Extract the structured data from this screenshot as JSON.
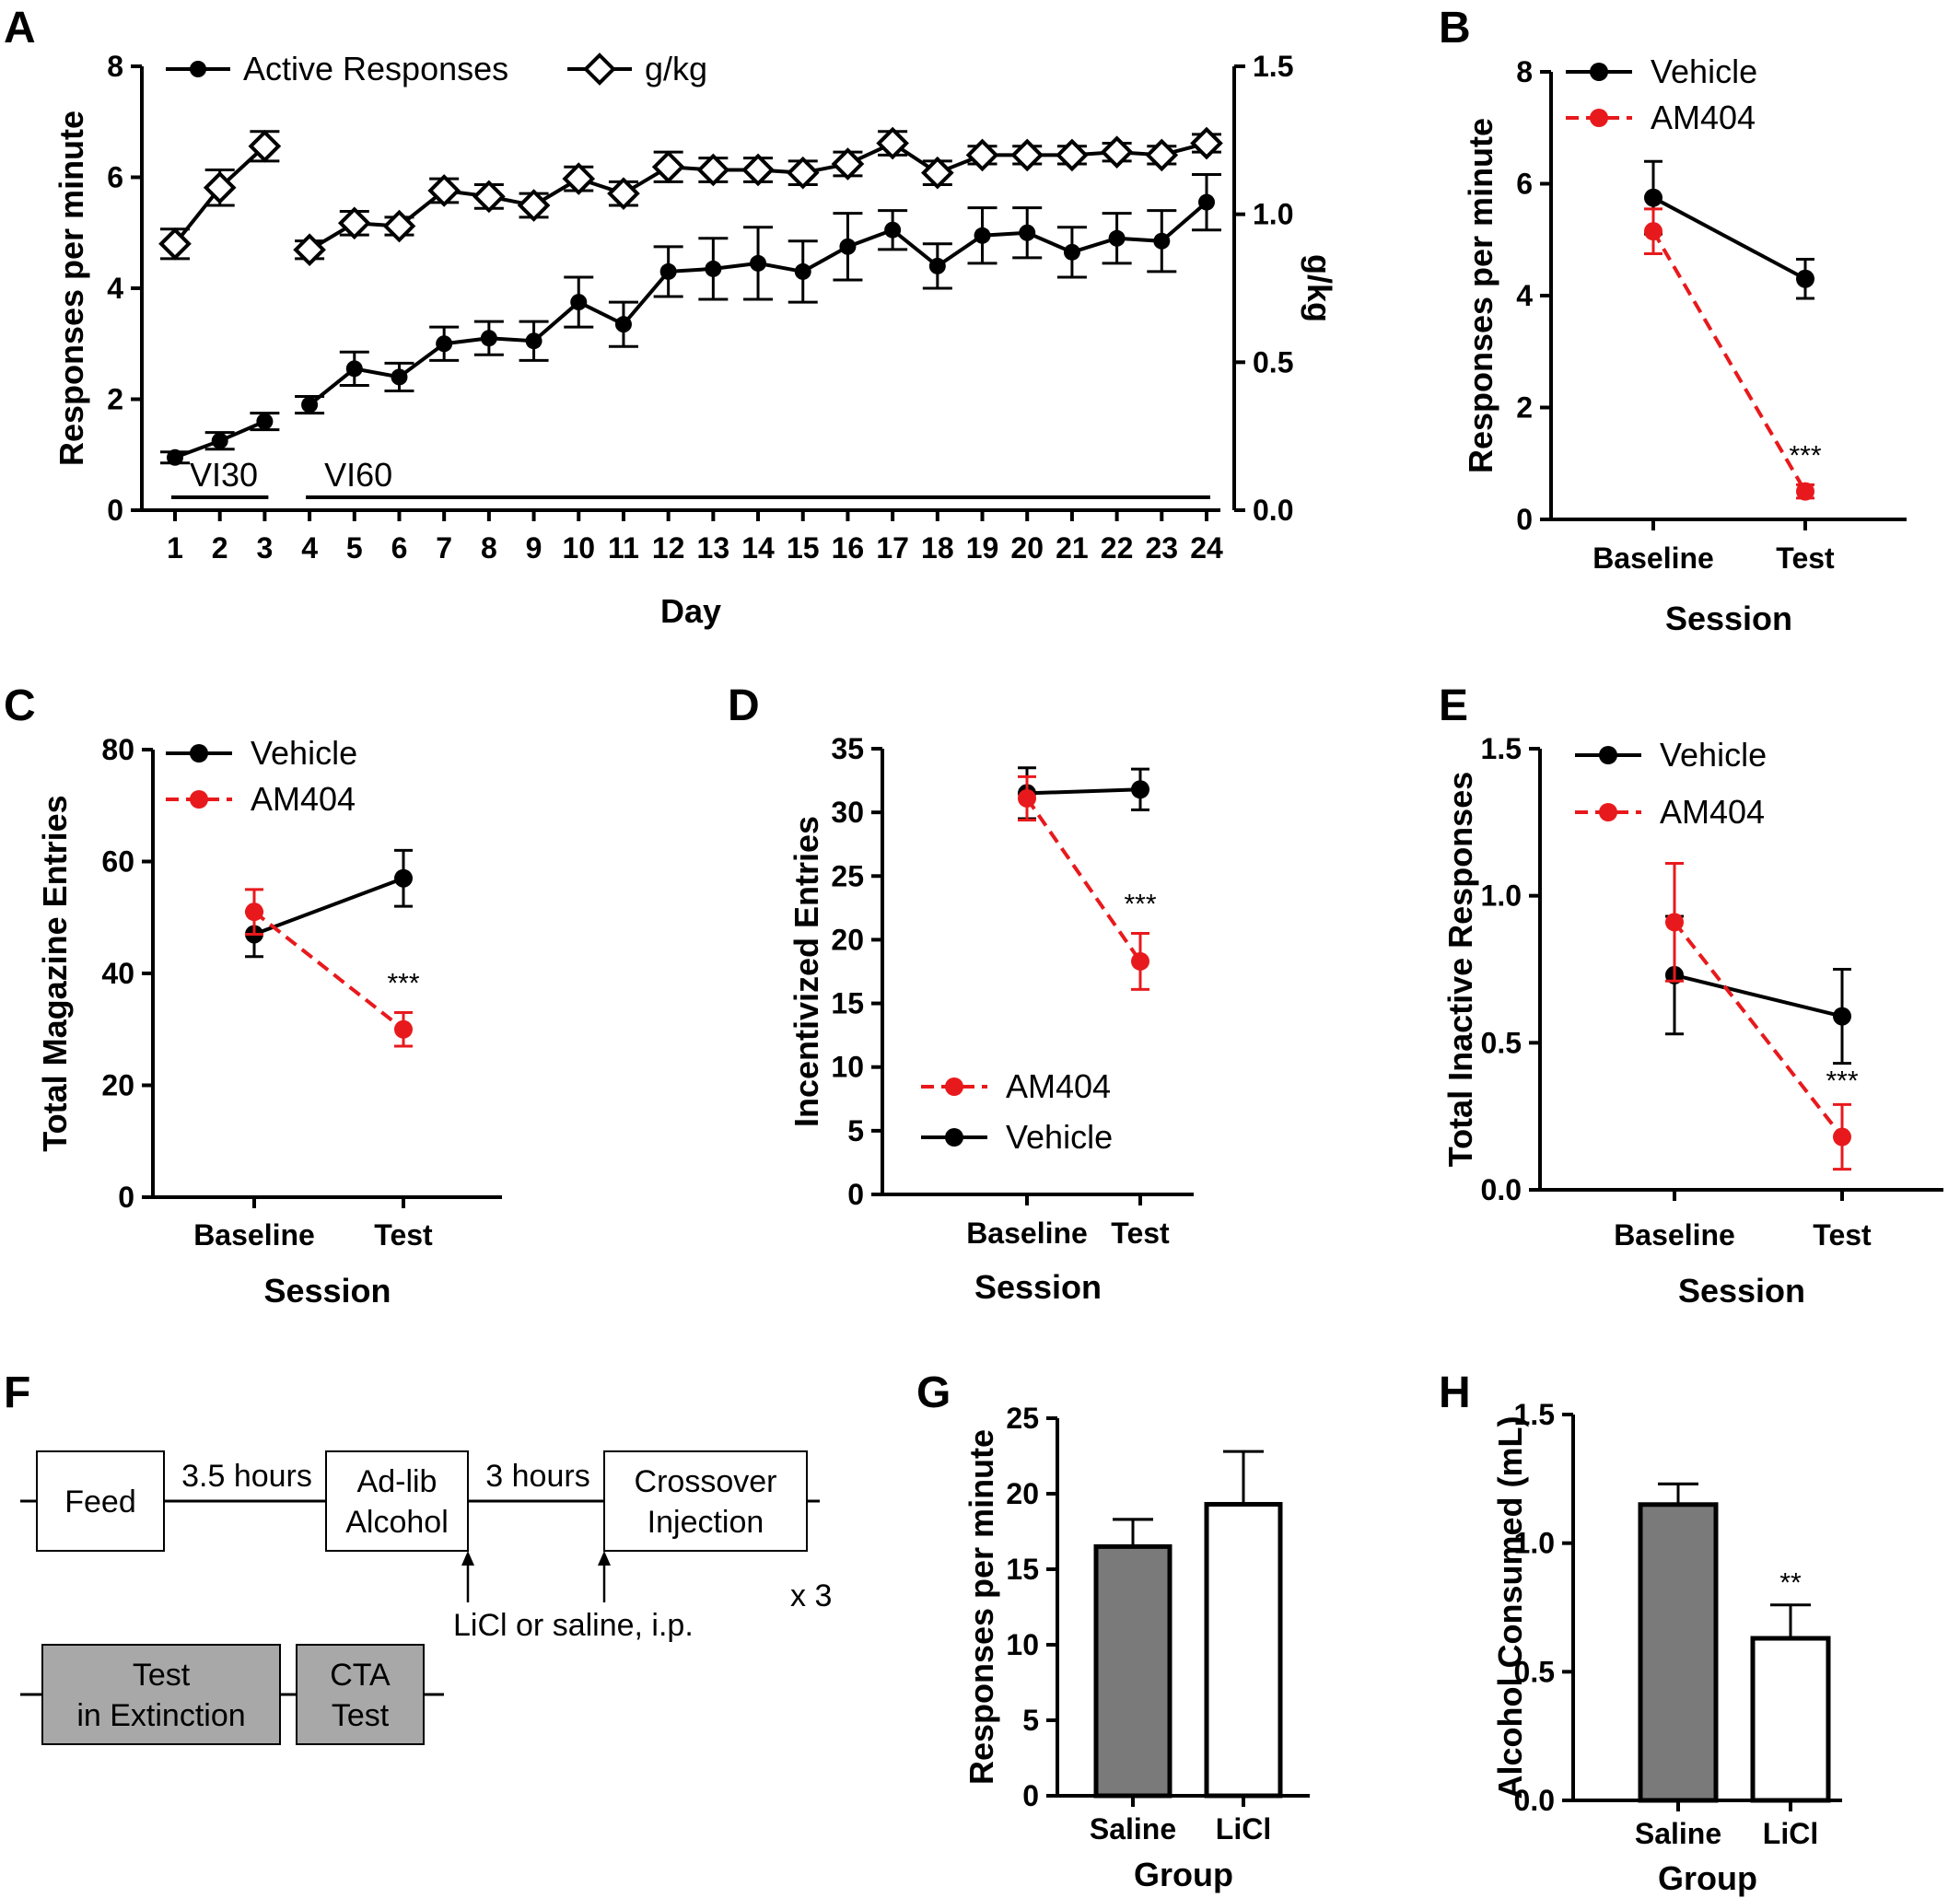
{
  "colors": {
    "vehicle": "#000000",
    "am404": "#e8191c",
    "saline_bar": "#7a7a7a",
    "licl_bar": "#ffffff",
    "timeline_box_gray": "#a8a8a8"
  },
  "chart_data": [
    {
      "panel": "A",
      "type": "line",
      "xlabel": "Day",
      "ylabel": "Responses per minute",
      "y2label": "g/kg",
      "x": [
        1,
        2,
        3,
        4,
        5,
        6,
        7,
        8,
        9,
        10,
        11,
        12,
        13,
        14,
        15,
        16,
        17,
        18,
        19,
        20,
        21,
        22,
        23,
        24
      ],
      "ylim": [
        0,
        8
      ],
      "y2lim": [
        0,
        1.5
      ],
      "yticks": [
        "0",
        "2",
        "4",
        "6",
        "8"
      ],
      "y2ticks": [
        "0.0",
        "0.5",
        "1.0",
        "1.5"
      ],
      "series": [
        {
          "name": "Active Responses",
          "axis": "left",
          "marker": "filled-circle",
          "values": [
            0.95,
            1.25,
            1.6,
            1.9,
            2.55,
            2.4,
            3.0,
            3.1,
            3.05,
            3.75,
            3.35,
            4.3,
            4.35,
            4.45,
            4.3,
            4.75,
            5.05,
            4.4,
            4.95,
            5.0,
            4.65,
            4.9,
            4.85,
            5.55
          ],
          "errors": [
            0.1,
            0.15,
            0.15,
            0.15,
            0.3,
            0.25,
            0.3,
            0.3,
            0.35,
            0.45,
            0.4,
            0.45,
            0.55,
            0.65,
            0.55,
            0.6,
            0.35,
            0.4,
            0.5,
            0.45,
            0.45,
            0.45,
            0.55,
            0.5
          ]
        },
        {
          "name": "g/kg",
          "axis": "right",
          "marker": "open-diamond",
          "values": [
            0.9,
            1.09,
            1.23,
            0.88,
            0.97,
            0.96,
            1.08,
            1.06,
            1.03,
            1.12,
            1.07,
            1.16,
            1.15,
            1.15,
            1.14,
            1.17,
            1.24,
            1.14,
            1.2,
            1.2,
            1.2,
            1.21,
            1.2,
            1.24
          ],
          "errors": [
            0.05,
            0.06,
            0.05,
            0.03,
            0.04,
            0.03,
            0.04,
            0.04,
            0.04,
            0.04,
            0.04,
            0.05,
            0.04,
            0.04,
            0.04,
            0.04,
            0.04,
            0.04,
            0.03,
            0.03,
            0.03,
            0.03,
            0.03,
            0.03
          ]
        }
      ],
      "annotations": [
        {
          "text": "VI30",
          "from": 1,
          "to": 3
        },
        {
          "text": "VI60",
          "from": 4,
          "to": 24
        }
      ],
      "gap_between": [
        3,
        4
      ]
    },
    {
      "panel": "B",
      "type": "line",
      "categories": [
        "Baseline",
        "Test"
      ],
      "xlabel": "Session",
      "ylabel": "Responses per minute",
      "ylim": [
        0,
        8
      ],
      "yticks": [
        "0",
        "2",
        "4",
        "6",
        "8"
      ],
      "series": [
        {
          "name": "Vehicle",
          "values": [
            5.75,
            4.3
          ],
          "errors": [
            0.65,
            0.35
          ]
        },
        {
          "name": "AM404",
          "values": [
            5.15,
            0.5
          ],
          "errors": [
            0.4,
            0.12
          ]
        }
      ],
      "significance": "***",
      "significance_at": "Test"
    },
    {
      "panel": "C",
      "type": "line",
      "categories": [
        "Baseline",
        "Test"
      ],
      "xlabel": "Session",
      "ylabel": "Total Magazine Entries",
      "ylim": [
        0,
        80
      ],
      "yticks": [
        "0",
        "20",
        "40",
        "60",
        "80"
      ],
      "series": [
        {
          "name": "Vehicle",
          "values": [
            47,
            57
          ],
          "errors": [
            4,
            5
          ]
        },
        {
          "name": "AM404",
          "values": [
            51,
            30
          ],
          "errors": [
            4,
            3
          ]
        }
      ],
      "significance": "***",
      "significance_at": "Test"
    },
    {
      "panel": "D",
      "type": "line",
      "categories": [
        "Baseline",
        "Test"
      ],
      "xlabel": "Session",
      "ylabel": "Incentivized Entries",
      "ylim": [
        0,
        35
      ],
      "yticks": [
        "0",
        "5",
        "10",
        "15",
        "20",
        "25",
        "30",
        "35"
      ],
      "series": [
        {
          "name": "Vehicle",
          "values": [
            31.5,
            31.8
          ],
          "errors": [
            2.0,
            1.6
          ]
        },
        {
          "name": "AM404",
          "values": [
            31.1,
            18.3
          ],
          "errors": [
            1.7,
            2.2
          ]
        }
      ],
      "legend_order": [
        "AM404",
        "Vehicle"
      ],
      "significance": "***",
      "significance_at": "Test"
    },
    {
      "panel": "E",
      "type": "line",
      "categories": [
        "Baseline",
        "Test"
      ],
      "xlabel": "Session",
      "ylabel": "Total Inactive Responses",
      "ylim": [
        0,
        1.5
      ],
      "yticks": [
        "0.0",
        "0.5",
        "1.0",
        "1.5"
      ],
      "series": [
        {
          "name": "Vehicle",
          "values": [
            0.73,
            0.59
          ],
          "errors": [
            0.2,
            0.16
          ]
        },
        {
          "name": "AM404",
          "values": [
            0.91,
            0.18
          ],
          "errors": [
            0.2,
            0.11
          ]
        }
      ],
      "significance": "***",
      "significance_at": "Test"
    },
    {
      "panel": "G",
      "type": "bar",
      "categories": [
        "Saline",
        "LiCl"
      ],
      "xlabel": "Group",
      "ylabel": "Responses per minute",
      "ylim": [
        0,
        25
      ],
      "yticks": [
        "0",
        "5",
        "10",
        "15",
        "20",
        "25"
      ],
      "values": [
        16.5,
        19.3
      ],
      "errors": [
        1.8,
        3.5
      ]
    },
    {
      "panel": "H",
      "type": "bar",
      "categories": [
        "Saline",
        "LiCl"
      ],
      "xlabel": "Group",
      "ylabel": "Alcohol Consumed (mL)",
      "ylim": [
        0,
        1.5
      ],
      "yticks": [
        "0.0",
        "0.5",
        "1.0",
        "1.5"
      ],
      "values": [
        1.15,
        0.63
      ],
      "errors": [
        0.08,
        0.13
      ],
      "significance": "**",
      "significance_at": "LiCl"
    }
  ],
  "panel_labels": [
    "A",
    "B",
    "C",
    "D",
    "E",
    "F",
    "G",
    "H"
  ],
  "timeline": {
    "boxes": [
      "Feed",
      "Ad-lib\nAlcohol",
      "Crossover\nInjection",
      "Test\nin Extinction",
      "CTA\nTest"
    ],
    "intervals": [
      "3.5 hours",
      "3 hours"
    ],
    "injection_note": "LiCl or saline, i.p.",
    "repeat": "x 3"
  }
}
